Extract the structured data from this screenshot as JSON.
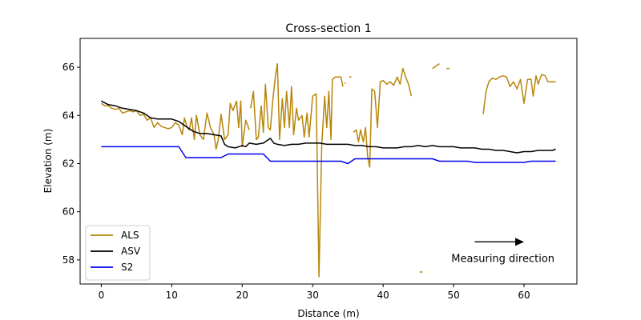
{
  "chart_data": {
    "type": "line",
    "title": "Cross-section 1",
    "xlabel": "Distance (m)",
    "ylabel": "Elevation (m)",
    "xlim": [
      -3,
      67.5
    ],
    "ylim": [
      57,
      67.2
    ],
    "xticks": [
      0,
      10,
      20,
      30,
      40,
      50,
      60
    ],
    "yticks": [
      58,
      60,
      62,
      64,
      66
    ],
    "grid": false,
    "legend_position": "bottom-left",
    "annotation": {
      "text": "Measuring direction",
      "arrow_from": [
        53,
        58.75
      ],
      "arrow_to": [
        60,
        58.75
      ],
      "text_at": [
        57,
        58.05
      ]
    },
    "series": [
      {
        "name": "ALS",
        "color": "#b8860b",
        "segments": [
          [
            [
              0,
              64.5
            ],
            [
              0.5,
              64.4
            ],
            [
              1,
              64.4
            ],
            [
              1.5,
              64.3
            ],
            [
              2,
              64.25
            ],
            [
              2.5,
              64.3
            ],
            [
              3,
              64.1
            ],
            [
              3.5,
              64.15
            ],
            [
              4,
              64.2
            ],
            [
              4.5,
              64.15
            ],
            [
              5,
              64.2
            ],
            [
              5.5,
              64.0
            ],
            [
              6,
              64.05
            ],
            [
              6.5,
              63.8
            ],
            [
              7,
              63.9
            ],
            [
              7.5,
              63.5
            ],
            [
              8,
              63.7
            ],
            [
              8.5,
              63.55
            ],
            [
              9,
              63.5
            ],
            [
              9.5,
              63.45
            ],
            [
              10,
              63.5
            ],
            [
              10.5,
              63.7
            ],
            [
              11,
              63.6
            ],
            [
              11.5,
              63.2
            ],
            [
              11.8,
              63.9
            ],
            [
              12.2,
              63.5
            ],
            [
              12.5,
              63.4
            ],
            [
              12.8,
              63.9
            ],
            [
              13.2,
              63.0
            ],
            [
              13.5,
              64.0
            ],
            [
              14,
              63.2
            ],
            [
              14.5,
              63.0
            ],
            [
              15,
              64.1
            ],
            [
              15.5,
              63.5
            ],
            [
              16,
              63.2
            ],
            [
              16.3,
              62.6
            ],
            [
              16.6,
              63.0
            ],
            [
              17,
              64.05
            ],
            [
              17.5,
              63.0
            ],
            [
              18,
              63.2
            ],
            [
              18.3,
              64.5
            ],
            [
              18.7,
              64.2
            ],
            [
              19.2,
              64.6
            ],
            [
              19.5,
              63.5
            ],
            [
              19.8,
              64.6
            ],
            [
              20,
              62.7
            ],
            [
              20.5,
              63.8
            ],
            [
              21,
              63.4
            ]
          ],
          [
            [
              21.2,
              64.3
            ],
            [
              21.6,
              65.0
            ],
            [
              22,
              63.0
            ],
            [
              22.3,
              63.1
            ],
            [
              22.7,
              64.4
            ],
            [
              23,
              63.3
            ],
            [
              23.3,
              65.3
            ],
            [
              23.7,
              63.5
            ],
            [
              24,
              63.4
            ],
            [
              24.3,
              64.5
            ],
            [
              24.7,
              65.6
            ],
            [
              25,
              66.15
            ],
            [
              25.3,
              63.0
            ],
            [
              25.7,
              64.7
            ],
            [
              26,
              63.5
            ],
            [
              26.3,
              65.0
            ],
            [
              26.7,
              63.5
            ],
            [
              27,
              65.2
            ],
            [
              27.3,
              63.2
            ],
            [
              27.7,
              64.3
            ],
            [
              28,
              63.8
            ],
            [
              28.5,
              64.0
            ],
            [
              28.8,
              63.1
            ],
            [
              29.2,
              64.1
            ],
            [
              29.5,
              63.1
            ],
            [
              30,
              64.8
            ],
            [
              30.5,
              64.9
            ],
            [
              30.9,
              57.3
            ],
            [
              31.3,
              62.8
            ],
            [
              31.7,
              64.8
            ],
            [
              32,
              63.5
            ],
            [
              32.3,
              65.0
            ],
            [
              32.6,
              63.0
            ],
            [
              32.8,
              65.5
            ],
            [
              33.2,
              65.6
            ],
            [
              33.6,
              65.6
            ],
            [
              34,
              65.6
            ],
            [
              34.3,
              65.2
            ]
          ],
          [
            [
              34.5,
              65.35
            ],
            [
              34.7,
              65.35
            ]
          ],
          [
            [
              35.2,
              65.6
            ],
            [
              35.5,
              65.6
            ]
          ],
          [
            [
              35.8,
              63.3
            ],
            [
              36.2,
              63.4
            ],
            [
              36.5,
              62.9
            ],
            [
              36.8,
              63.4
            ],
            [
              37.2,
              62.9
            ],
            [
              37.5,
              63.5
            ],
            [
              37.8,
              62.3
            ],
            [
              38.1,
              61.85
            ],
            [
              38.4,
              65.1
            ],
            [
              38.8,
              65.0
            ],
            [
              39.2,
              63.5
            ],
            [
              39.6,
              65.4
            ],
            [
              40,
              65.45
            ],
            [
              40.5,
              65.3
            ],
            [
              41,
              65.4
            ],
            [
              41.5,
              65.25
            ],
            [
              42,
              65.6
            ],
            [
              42.4,
              65.3
            ],
            [
              42.8,
              65.95
            ],
            [
              43.2,
              65.6
            ],
            [
              43.6,
              65.3
            ],
            [
              44,
              64.8
            ]
          ],
          [
            [
              45.2,
              57.5
            ],
            [
              45.6,
              57.5
            ]
          ],
          [
            [
              47,
              65.95
            ],
            [
              47.5,
              66.05
            ],
            [
              48,
              66.15
            ]
          ],
          [
            [
              49,
              65.95
            ],
            [
              49.4,
              65.95
            ]
          ],
          [
            [
              54.2,
              64.05
            ],
            [
              54.6,
              65.0
            ],
            [
              55,
              65.4
            ],
            [
              55.5,
              65.55
            ],
            [
              56,
              65.5
            ],
            [
              56.5,
              65.6
            ],
            [
              57,
              65.65
            ],
            [
              57.5,
              65.6
            ],
            [
              58,
              65.2
            ],
            [
              58.5,
              65.4
            ],
            [
              59,
              65.1
            ],
            [
              59.5,
              65.5
            ],
            [
              60,
              64.5
            ],
            [
              60.5,
              65.5
            ],
            [
              61,
              65.5
            ],
            [
              61.3,
              64.8
            ],
            [
              61.7,
              65.65
            ],
            [
              62,
              65.3
            ],
            [
              62.5,
              65.7
            ],
            [
              63,
              65.65
            ],
            [
              63.4,
              65.4
            ],
            [
              64,
              65.4
            ],
            [
              64.5,
              65.4
            ]
          ]
        ]
      },
      {
        "name": "ASV",
        "color": "#000000",
        "segments": [
          [
            [
              0,
              64.6
            ],
            [
              1,
              64.45
            ],
            [
              2,
              64.4
            ],
            [
              3,
              64.3
            ],
            [
              4,
              64.25
            ],
            [
              5,
              64.2
            ],
            [
              6,
              64.1
            ],
            [
              7,
              63.9
            ],
            [
              8,
              63.85
            ],
            [
              9,
              63.85
            ],
            [
              10,
              63.85
            ],
            [
              11,
              63.75
            ],
            [
              12,
              63.55
            ],
            [
              13,
              63.35
            ],
            [
              14,
              63.25
            ],
            [
              15,
              63.25
            ],
            [
              16,
              63.2
            ],
            [
              17,
              63.15
            ],
            [
              17.5,
              62.8
            ],
            [
              18,
              62.7
            ],
            [
              19,
              62.65
            ],
            [
              20,
              62.75
            ],
            [
              20.5,
              62.7
            ],
            [
              21,
              62.85
            ],
            [
              22,
              62.8
            ],
            [
              23,
              62.85
            ],
            [
              24,
              63.05
            ],
            [
              24.5,
              62.85
            ],
            [
              25,
              62.8
            ],
            [
              26,
              62.75
            ],
            [
              27,
              62.8
            ],
            [
              28,
              62.8
            ],
            [
              29,
              62.85
            ],
            [
              30,
              62.85
            ],
            [
              31,
              62.85
            ],
            [
              32,
              62.8
            ],
            [
              33,
              62.8
            ],
            [
              34,
              62.8
            ],
            [
              35,
              62.8
            ],
            [
              36,
              62.75
            ],
            [
              37,
              62.75
            ],
            [
              38,
              62.7
            ],
            [
              39,
              62.7
            ],
            [
              40,
              62.65
            ],
            [
              41,
              62.65
            ],
            [
              42,
              62.65
            ],
            [
              43,
              62.7
            ],
            [
              44,
              62.7
            ],
            [
              45,
              62.75
            ],
            [
              46,
              62.7
            ],
            [
              47,
              62.75
            ],
            [
              48,
              62.7
            ],
            [
              49,
              62.7
            ],
            [
              50,
              62.7
            ],
            [
              51,
              62.65
            ],
            [
              52,
              62.65
            ],
            [
              53,
              62.65
            ],
            [
              54,
              62.6
            ],
            [
              55,
              62.6
            ],
            [
              56,
              62.55
            ],
            [
              57,
              62.55
            ],
            [
              58,
              62.5
            ],
            [
              59,
              62.45
            ],
            [
              60,
              62.5
            ],
            [
              61,
              62.5
            ],
            [
              62,
              62.55
            ],
            [
              63,
              62.55
            ],
            [
              64,
              62.55
            ],
            [
              64.5,
              62.6
            ]
          ]
        ]
      },
      {
        "name": "S2",
        "color": "#0000ee",
        "segments": [
          [
            [
              0,
              62.7
            ],
            [
              11,
              62.7
            ],
            [
              12,
              62.25
            ],
            [
              17,
              62.25
            ],
            [
              18,
              62.4
            ],
            [
              23,
              62.4
            ],
            [
              24,
              62.1
            ],
            [
              34,
              62.1
            ],
            [
              35,
              62.0
            ],
            [
              36,
              62.2
            ],
            [
              47,
              62.2
            ],
            [
              48,
              62.1
            ],
            [
              52,
              62.1
            ],
            [
              53,
              62.05
            ],
            [
              60,
              62.05
            ],
            [
              61,
              62.1
            ],
            [
              64.5,
              62.1
            ]
          ]
        ]
      }
    ]
  }
}
